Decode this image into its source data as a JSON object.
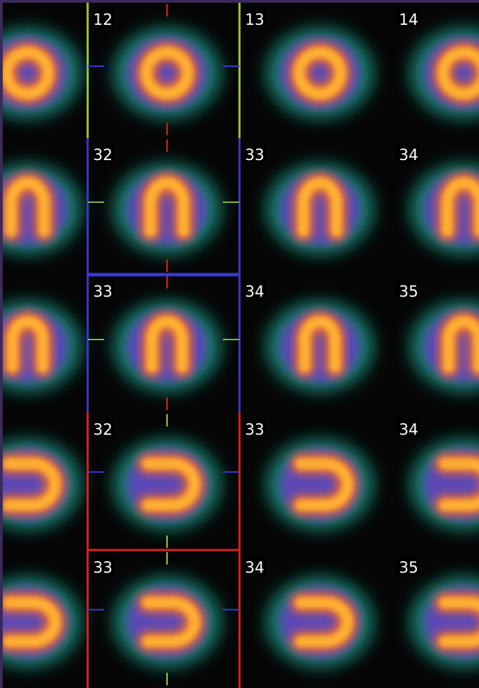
{
  "grid": {
    "rows": [
      {
        "labels": [
          "12",
          "13",
          "14"
        ]
      },
      {
        "labels": [
          "32",
          "33",
          "34"
        ]
      },
      {
        "labels": [
          "33",
          "34",
          "35"
        ]
      },
      {
        "labels": [
          "32",
          "33",
          "34"
        ]
      },
      {
        "labels": [
          "33",
          "34",
          "35"
        ]
      }
    ]
  }
}
